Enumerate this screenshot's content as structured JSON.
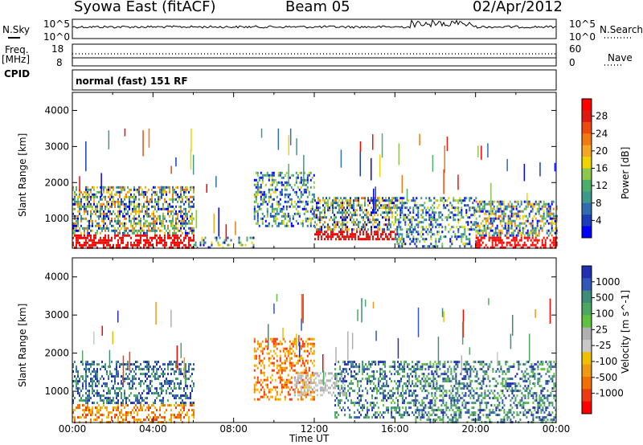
{
  "header": {
    "station": "Syowa East (fitACF)",
    "beam": "Beam 05",
    "date": "02/Apr/2012"
  },
  "status_panel": {
    "left_label_nsky": "N.Sky",
    "left_label_freq": "Freq.",
    "left_label_mhz": "[MHz]",
    "left_label_cpid": "CPID",
    "right_label_nsearch": "N.Search",
    "right_label_nave": "Nave",
    "noise_ticks": [
      "10^5",
      "10^0"
    ],
    "noise_ticks_right": [
      "10^5",
      "10^0"
    ],
    "freq_ticks": [
      "18",
      "8"
    ],
    "nave_ticks": [
      "60",
      "0"
    ],
    "cpid_text": "normal (fast) 151 RF"
  },
  "chart_data": [
    {
      "type": "heatmap",
      "panel": "power",
      "title": "",
      "ylabel": "Slant Range [km]",
      "xlabel": "",
      "yticks": [
        "1000",
        "2000",
        "3000",
        "4000"
      ],
      "ylim": [
        180,
        4500
      ],
      "xlim": [
        0,
        24
      ],
      "colorbar": {
        "label": "Power [dB]",
        "ticks": [
          "4",
          "8",
          "12",
          "16",
          "20",
          "24",
          "28"
        ],
        "colors": [
          "#0000ff",
          "#1a3db8",
          "#2f6db0",
          "#3d9a8a",
          "#4cae6a",
          "#8cc84e",
          "#f0d400",
          "#f5a623",
          "#f07a10",
          "#ee4a10",
          "#e01a10",
          "#ff0000"
        ]
      },
      "intervals": [
        {
          "from_h": 0.0,
          "to_h": 6.0,
          "range_km": [
            200,
            1900
          ],
          "level": "high"
        },
        {
          "from_h": 6.0,
          "to_h": 9.0,
          "range_km": [
            200,
            500
          ],
          "level": "low"
        },
        {
          "from_h": 9.0,
          "to_h": 12.0,
          "range_km": [
            800,
            2300
          ],
          "level": "medium"
        },
        {
          "from_h": 12.0,
          "to_h": 16.0,
          "range_km": [
            400,
            1600
          ],
          "level": "high"
        },
        {
          "from_h": 16.0,
          "to_h": 20.0,
          "range_km": [
            200,
            1600
          ],
          "level": "medium"
        },
        {
          "from_h": 20.0,
          "to_h": 24.0,
          "range_km": [
            200,
            1500
          ],
          "level": "high"
        }
      ]
    },
    {
      "type": "heatmap",
      "panel": "velocity",
      "title": "",
      "ylabel": "Slant Range [km]",
      "xlabel": "Time UT",
      "yticks": [
        "1000",
        "2000",
        "3000",
        "4000"
      ],
      "xticks": [
        "00:00",
        "04:00",
        "08:00",
        "12:00",
        "16:00",
        "20:00",
        "00:00"
      ],
      "ylim": [
        180,
        4500
      ],
      "xlim": [
        0,
        24
      ],
      "colorbar": {
        "label": "Velocity [m s^-1]",
        "ticks": [
          "1000",
          "500",
          "100",
          "25",
          "-25",
          "-100",
          "-500",
          "-1000"
        ],
        "colors": [
          "#2030b0",
          "#3058b8",
          "#3e8c7a",
          "#4aa860",
          "#60c040",
          "#b0b0b0",
          "#c8c8c8",
          "#f0c000",
          "#f09a10",
          "#f07000",
          "#ee3a10",
          "#ff0000"
        ]
      },
      "intervals": [
        {
          "from_h": 0.0,
          "to_h": 6.0,
          "range_km": [
            200,
            1800
          ],
          "level": "mixed"
        },
        {
          "from_h": 9.0,
          "to_h": 12.0,
          "range_km": [
            800,
            2400
          ],
          "level": "negative"
        },
        {
          "from_h": 11.0,
          "to_h": 13.5,
          "range_km": [
            900,
            1500
          ],
          "level": "near-zero"
        },
        {
          "from_h": 13.0,
          "to_h": 17.0,
          "range_km": [
            300,
            1800
          ],
          "level": "positive"
        },
        {
          "from_h": 17.0,
          "to_h": 24.0,
          "range_km": [
            200,
            1800
          ],
          "level": "positive"
        }
      ]
    }
  ]
}
